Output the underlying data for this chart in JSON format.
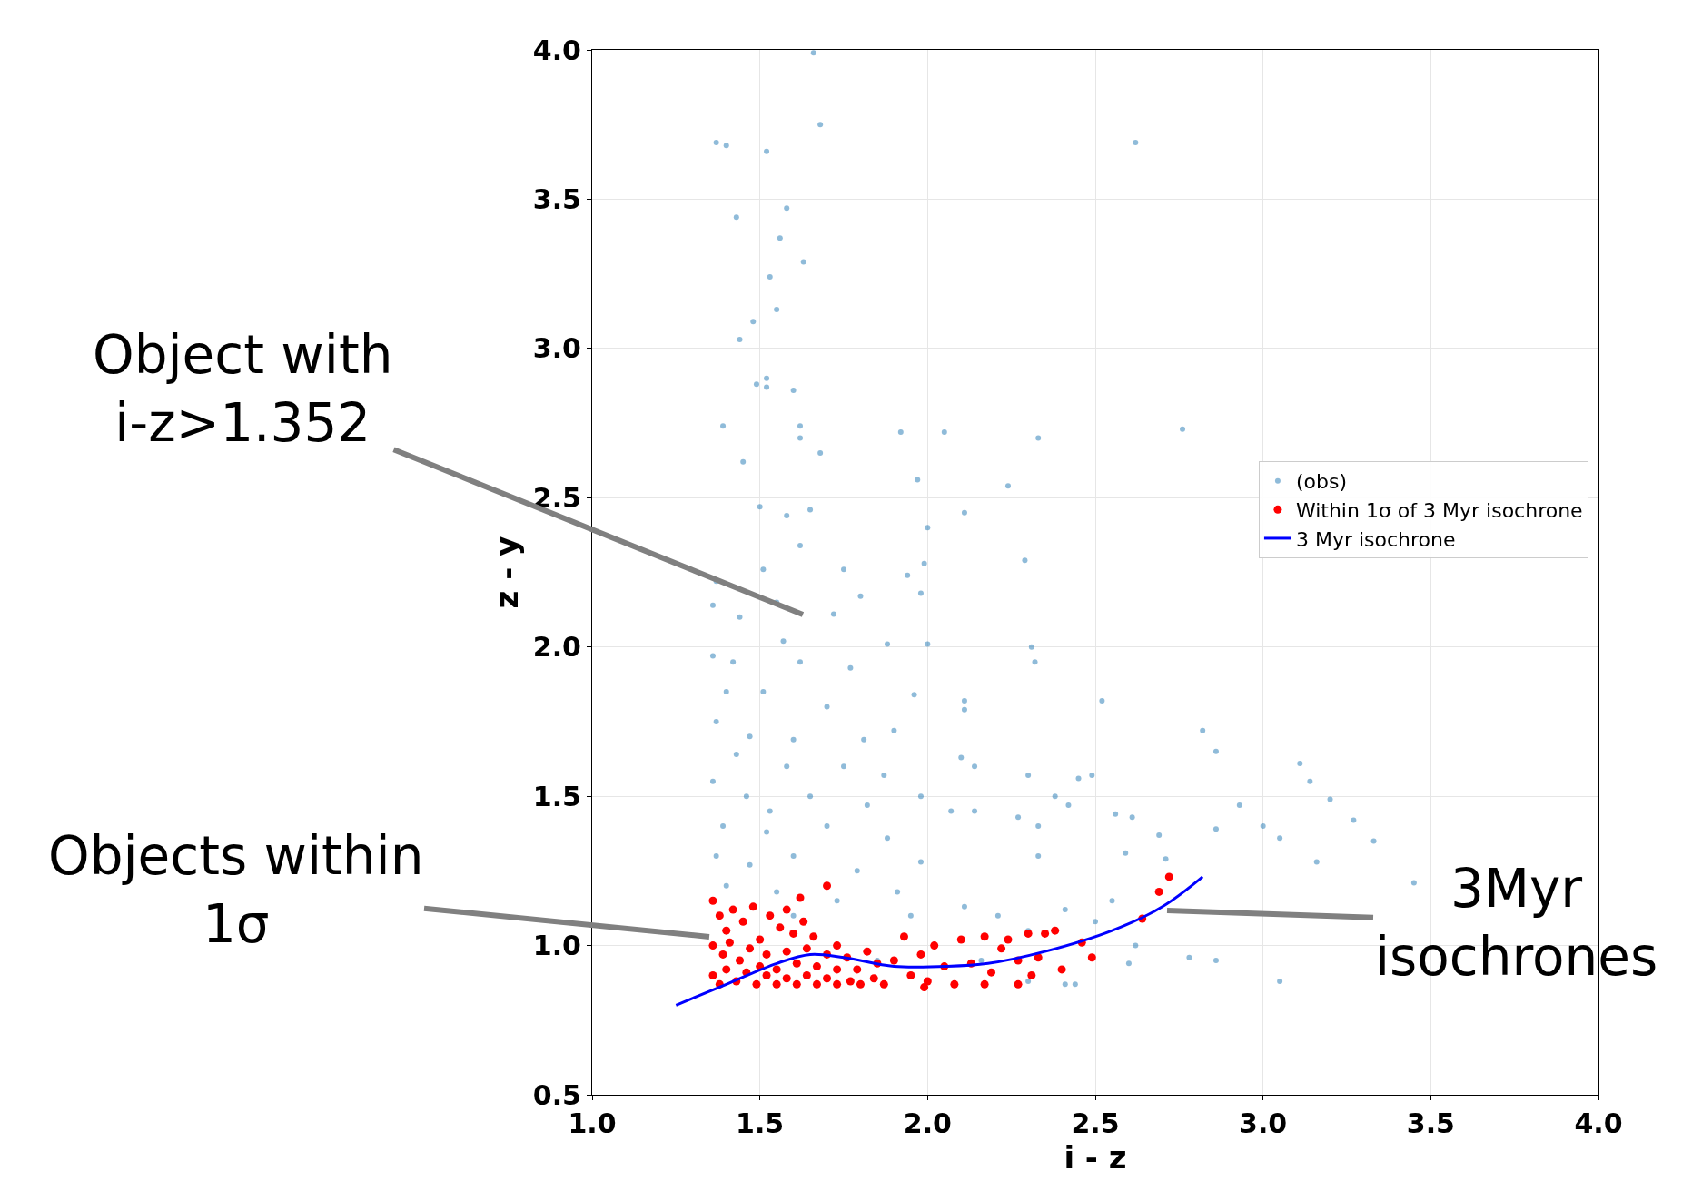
{
  "chart_data": {
    "type": "scatter",
    "xlabel": "i - z",
    "ylabel": "z - y",
    "xlim": [
      1.0,
      4.0
    ],
    "ylim": [
      0.5,
      4.0
    ],
    "xticks": [
      {
        "value": 1.0,
        "label": "1.0"
      },
      {
        "value": 1.5,
        "label": "1.5"
      },
      {
        "value": 2.0,
        "label": "2.0"
      },
      {
        "value": 2.5,
        "label": "2.5"
      },
      {
        "value": 3.0,
        "label": "3.0"
      },
      {
        "value": 3.5,
        "label": "3.5"
      },
      {
        "value": 4.0,
        "label": "4.0"
      }
    ],
    "yticks": [
      0.5,
      {
        "value": 1.0,
        "label": "1.0"
      },
      1.5,
      {
        "value": 2.0,
        "label": "2.0"
      },
      2.5,
      {
        "value": 3.0,
        "label": "3.0"
      },
      3.5,
      {
        "value": 4.0,
        "label": "4.0"
      }
    ],
    "grid": true,
    "legend": "right",
    "marker": "circle",
    "series": [
      {
        "name": "(obs)",
        "color": "#1f77b4",
        "x": [
          1.66,
          1.37,
          1.4,
          1.68,
          1.52,
          2.62,
          1.58,
          1.43,
          1.56,
          1.63,
          1.53,
          1.55,
          1.48,
          1.44,
          1.49,
          1.52,
          1.52,
          1.6,
          1.39,
          1.62,
          1.62,
          1.68,
          1.92,
          2.05,
          2.33,
          2.76,
          1.45,
          1.97,
          2.24,
          1.5,
          1.58,
          1.65,
          2.0,
          2.11,
          1.37,
          1.51,
          1.62,
          1.75,
          1.8,
          1.94,
          1.99,
          2.29,
          1.36,
          1.44,
          1.55,
          1.72,
          1.98,
          1.36,
          1.42,
          1.57,
          1.62,
          1.77,
          1.88,
          2.0,
          2.31,
          2.32,
          1.4,
          1.51,
          1.7,
          1.96,
          2.11,
          2.52,
          1.37,
          1.47,
          1.6,
          1.81,
          1.9,
          2.11,
          2.82,
          2.86,
          1.43,
          1.58,
          1.75,
          1.87,
          2.1,
          2.14,
          2.3,
          2.45,
          2.49,
          3.11,
          3.14,
          1.36,
          1.46,
          1.53,
          1.65,
          1.82,
          1.98,
          2.14,
          2.38,
          2.42,
          2.56,
          2.93,
          3.2,
          1.39,
          1.52,
          1.7,
          1.88,
          2.07,
          2.27,
          2.33,
          2.61,
          2.69,
          3.0,
          3.05,
          3.27,
          3.33,
          3.45,
          3.16,
          2.86,
          1.37,
          1.47,
          1.6,
          1.79,
          1.98,
          2.33,
          2.59,
          2.71,
          1.4,
          1.55,
          1.73,
          1.91,
          2.11,
          2.21,
          2.41,
          2.55,
          1.6,
          1.95,
          2.3,
          2.5,
          2.62,
          2.78,
          2.86,
          3.05,
          2.3,
          2.41,
          2.44,
          2.6,
          2.16,
          1.85
        ],
        "values": [
          3.99,
          3.69,
          3.68,
          3.75,
          3.66,
          3.69,
          3.47,
          3.44,
          3.37,
          3.29,
          3.24,
          3.13,
          3.09,
          3.03,
          2.88,
          2.9,
          2.87,
          2.86,
          2.74,
          2.74,
          2.7,
          2.65,
          2.72,
          2.72,
          2.7,
          2.73,
          2.62,
          2.56,
          2.54,
          2.47,
          2.44,
          2.46,
          2.4,
          2.45,
          2.22,
          2.26,
          2.34,
          2.26,
          2.17,
          2.24,
          2.28,
          2.29,
          2.14,
          2.1,
          2.15,
          2.11,
          2.18,
          1.97,
          1.95,
          2.02,
          1.95,
          1.93,
          2.01,
          2.01,
          2.0,
          1.95,
          1.85,
          1.85,
          1.8,
          1.84,
          1.82,
          1.82,
          1.75,
          1.7,
          1.69,
          1.69,
          1.72,
          1.79,
          1.72,
          1.65,
          1.64,
          1.6,
          1.6,
          1.57,
          1.63,
          1.6,
          1.57,
          1.56,
          1.57,
          1.61,
          1.55,
          1.55,
          1.5,
          1.45,
          1.5,
          1.47,
          1.5,
          1.45,
          1.5,
          1.47,
          1.44,
          1.47,
          1.49,
          1.4,
          1.38,
          1.4,
          1.36,
          1.45,
          1.43,
          1.4,
          1.43,
          1.37,
          1.4,
          1.36,
          1.42,
          1.35,
          1.21,
          1.28,
          1.39,
          1.3,
          1.27,
          1.3,
          1.25,
          1.28,
          1.3,
          1.31,
          1.29,
          1.2,
          1.18,
          1.15,
          1.18,
          1.13,
          1.1,
          1.12,
          1.15,
          1.1,
          1.1,
          1.05,
          1.08,
          1.0,
          0.96,
          0.95,
          0.88,
          0.88,
          0.87,
          0.87,
          0.94,
          0.95,
          0.95
        ]
      },
      {
        "name": "Within 1σ of 3 Myr isochrone",
        "color": "#ff0000",
        "x": [
          1.36,
          1.38,
          1.4,
          1.42,
          1.45,
          1.48,
          1.5,
          1.53,
          1.56,
          1.58,
          1.6,
          1.63,
          1.66,
          1.7,
          1.73,
          1.62,
          1.36,
          1.39,
          1.41,
          1.44,
          1.47,
          1.5,
          1.52,
          1.55,
          1.58,
          1.61,
          1.64,
          1.67,
          1.7,
          1.73,
          1.76,
          1.79,
          1.82,
          1.85,
          1.36,
          1.38,
          1.4,
          1.43,
          1.46,
          1.49,
          1.52,
          1.55,
          1.58,
          1.61,
          1.64,
          1.67,
          1.7,
          1.73,
          1.77,
          1.8,
          1.84,
          1.87,
          1.9,
          1.93,
          1.95,
          1.98,
          2.0,
          2.02,
          2.05,
          2.08,
          2.1,
          2.13,
          2.17,
          2.19,
          2.22,
          2.24,
          2.27,
          2.3,
          2.33,
          2.35,
          2.38,
          2.31,
          2.27,
          2.4,
          2.46,
          2.49,
          2.64,
          2.69,
          2.72,
          1.99,
          2.17
        ],
        "values": [
          1.15,
          1.1,
          1.05,
          1.12,
          1.08,
          1.13,
          1.02,
          1.1,
          1.06,
          1.12,
          1.04,
          1.08,
          1.03,
          1.2,
          1.0,
          1.16,
          1.0,
          0.97,
          1.01,
          0.95,
          0.99,
          0.93,
          0.97,
          0.92,
          0.98,
          0.94,
          0.99,
          0.93,
          0.97,
          0.92,
          0.96,
          0.92,
          0.98,
          0.94,
          0.9,
          0.87,
          0.92,
          0.88,
          0.91,
          0.87,
          0.9,
          0.87,
          0.89,
          0.87,
          0.9,
          0.87,
          0.89,
          0.87,
          0.88,
          0.87,
          0.89,
          0.87,
          0.95,
          1.03,
          0.9,
          0.97,
          0.88,
          1.0,
          0.93,
          0.87,
          1.02,
          0.94,
          1.03,
          0.91,
          0.99,
          1.02,
          0.95,
          1.04,
          0.96,
          1.04,
          1.05,
          0.9,
          0.87,
          0.92,
          1.01,
          0.96,
          1.09,
          1.18,
          1.23,
          0.86,
          0.87
        ]
      },
      {
        "name": "3 Myr isochrone",
        "type": "line",
        "color": "#0000ff",
        "marker": "none",
        "x": [
          1.25,
          1.4,
          1.55,
          1.65,
          1.75,
          1.9,
          2.05,
          2.18,
          2.35,
          2.55,
          2.7,
          2.82
        ],
        "values": [
          0.8,
          0.87,
          0.94,
          0.97,
          0.96,
          0.93,
          0.93,
          0.94,
          0.98,
          1.05,
          1.13,
          1.23
        ]
      }
    ],
    "annotations": [
      "Object with\ni-z>1.352",
      "Objects within\n1σ",
      "3Myr\nisochrones"
    ]
  }
}
